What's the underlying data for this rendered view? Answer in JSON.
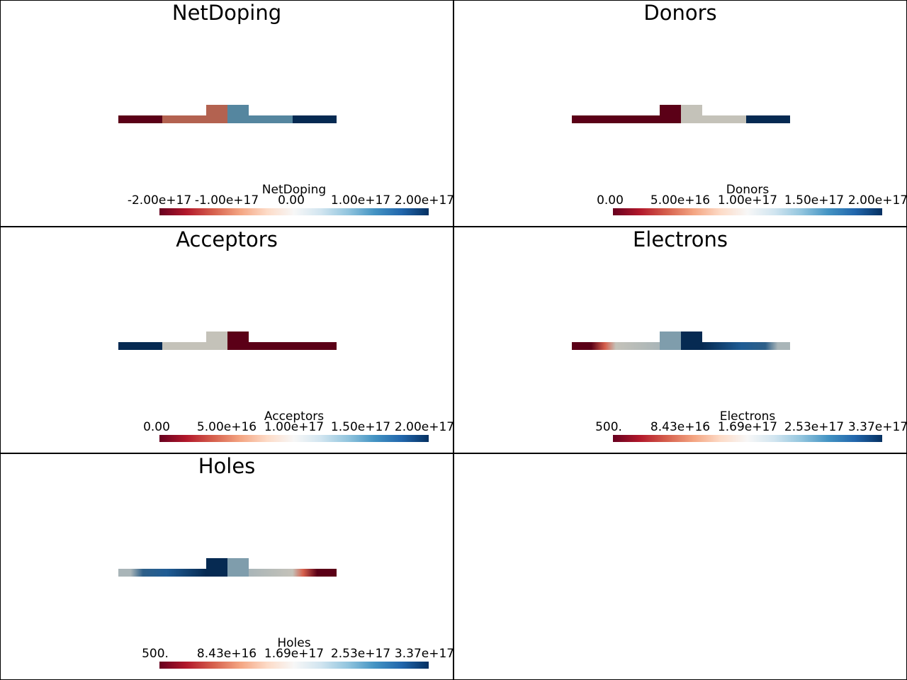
{
  "colors": {
    "dark_red": "#5b0017",
    "mid_red": "#b36250",
    "mid_blue": "#55869f",
    "dark_blue": "#062a52",
    "light_grey": "#c4c2b9",
    "grey_blue": "#7f9dac"
  },
  "panels": [
    {
      "title": "NetDoping",
      "colorbar": {
        "title": "NetDoping",
        "ticks": [
          "-2.00e+17",
          "-1.00e+17",
          "0.00",
          "1.00e+17",
          "2.00e+17"
        ]
      }
    },
    {
      "title": "Donors",
      "colorbar": {
        "title": "Donors",
        "ticks": [
          "0.00",
          "5.00e+16",
          "1.00e+17",
          "1.50e+17",
          "2.00e+17"
        ]
      }
    },
    {
      "title": "Acceptors",
      "colorbar": {
        "title": "Acceptors",
        "ticks": [
          "0.00",
          "5.00e+16",
          "1.00e+17",
          "1.50e+17",
          "2.00e+17"
        ]
      }
    },
    {
      "title": "Electrons",
      "colorbar": {
        "title": "Electrons",
        "ticks": [
          "500.",
          "8.43e+16",
          "1.69e+17",
          "2.53e+17",
          "3.37e+17"
        ]
      }
    },
    {
      "title": "Holes",
      "colorbar": {
        "title": "Holes",
        "ticks": [
          "500.",
          "8.43e+16",
          "1.69e+17",
          "2.53e+17",
          "3.37e+17"
        ]
      }
    }
  ]
}
